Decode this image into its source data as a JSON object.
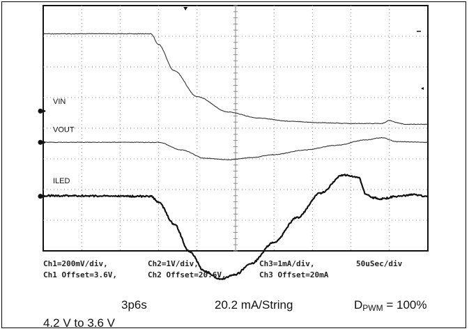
{
  "chart_data": {
    "type": "line",
    "title": "",
    "xlabel": "",
    "ylabel": "",
    "grid": true,
    "divisions": {
      "x": 10,
      "y": 8
    },
    "xlim": [
      0,
      500
    ],
    "x_unit": "us",
    "series": [
      {
        "name": "VIN",
        "unit": "V",
        "scale_per_div": 0.2,
        "offset": 3.6,
        "x": [
          0,
          140,
          150,
          170,
          200,
          240,
          280,
          320,
          360,
          400,
          440,
          450,
          460,
          470,
          500
        ],
        "y": [
          4.19,
          4.19,
          4.12,
          3.95,
          3.78,
          3.68,
          3.64,
          3.62,
          3.61,
          3.605,
          3.605,
          3.625,
          3.61,
          3.6,
          3.6
        ],
        "color": "#333333",
        "stroke": "thin"
      },
      {
        "name": "VOUT",
        "unit": "V",
        "scale_per_div": 1,
        "offset": 20.6,
        "x": [
          0,
          150,
          180,
          210,
          240,
          270,
          300,
          340,
          380,
          420,
          440,
          460,
          500
        ],
        "y": [
          20.6,
          20.6,
          20.35,
          20.08,
          20.03,
          20.1,
          20.2,
          20.35,
          20.5,
          20.68,
          20.75,
          20.62,
          20.6
        ],
        "color": "#333333",
        "stroke": "thin"
      },
      {
        "name": "ILED",
        "unit": "mA",
        "scale_per_div": 1,
        "offset": 20,
        "x": [
          0,
          140,
          150,
          170,
          190,
          210,
          230,
          250,
          270,
          300,
          330,
          360,
          390,
          410,
          420,
          430,
          440,
          460,
          480,
          500
        ],
        "y": [
          20.02,
          20.0,
          19.8,
          19.1,
          18.2,
          17.55,
          17.3,
          17.45,
          17.8,
          18.5,
          19.3,
          20.1,
          20.7,
          20.6,
          20.05,
          19.95,
          19.92,
          20.0,
          20.05,
          20.0
        ],
        "color": "#111111",
        "stroke": "thick"
      }
    ]
  },
  "scope_caption": {
    "line1": [
      "Ch1=200mV/div,",
      "Ch2=1V/div,",
      "Ch3=1mA/div,",
      "50uSec/div"
    ],
    "line2": [
      "Ch1 Offset=3.6V,",
      "Ch2 Offset=20.6V,",
      "Ch3 Offset=20mA"
    ]
  },
  "labels": {
    "config": "3p6s",
    "current": "20.2 mA/String",
    "duty_main": "D",
    "duty_sub": "PWM",
    "duty_value": " = 100%",
    "vin_step": "4.2 V to 3.6 V"
  },
  "colors": {
    "ink": "#111111",
    "grid": "#8a8a8a"
  }
}
